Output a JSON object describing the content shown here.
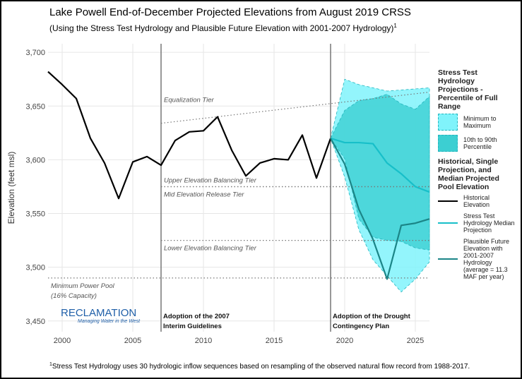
{
  "chart_data": {
    "type": "line",
    "title": "Lake Powell End-of-December Projected Elevations from August 2019 CRSS",
    "subtitle": "(Using the Stress Test Hydrology and Plausible Future Elevation with 2001-2007 Hydrology)",
    "subtitle_marker": "1",
    "ylabel": "Elevation (feet msl)",
    "xlim": [
      1999,
      2026
    ],
    "ylim": [
      3440,
      3708
    ],
    "xticks": [
      2000,
      2005,
      2010,
      2015,
      2020,
      2025
    ],
    "yticks": [
      {
        "value": 3450,
        "label": "3,450"
      },
      {
        "value": 3500,
        "label": "3,500"
      },
      {
        "value": 3550,
        "label": "3,550"
      },
      {
        "value": 3600,
        "label": "3,600"
      },
      {
        "value": 3650,
        "label": "3,650"
      },
      {
        "value": 3700,
        "label": "3,700"
      }
    ],
    "grid": true,
    "x": [
      1999,
      2000,
      2001,
      2002,
      2003,
      2004,
      2005,
      2006,
      2007,
      2008,
      2009,
      2010,
      2011,
      2012,
      2013,
      2014,
      2015,
      2016,
      2017,
      2018,
      2019,
      2020,
      2021,
      2022,
      2023,
      2024,
      2025,
      2026
    ],
    "bands": [
      {
        "name": "Minimum to Maximum",
        "color": "#80f3fb",
        "upper": [
          null,
          null,
          null,
          null,
          null,
          null,
          null,
          null,
          null,
          null,
          null,
          null,
          null,
          null,
          null,
          null,
          null,
          null,
          null,
          null,
          3620,
          3675,
          3670,
          3667,
          3664,
          3665,
          3666,
          3667
        ],
        "lower": [
          null,
          null,
          null,
          null,
          null,
          null,
          null,
          null,
          null,
          null,
          null,
          null,
          null,
          null,
          null,
          null,
          null,
          null,
          null,
          null,
          3620,
          3584,
          3535,
          3507,
          3492,
          3477,
          3489,
          3505
        ]
      },
      {
        "name": "10th to 90th Percentile",
        "color": "#3ccfd2",
        "upper": [
          null,
          null,
          null,
          null,
          null,
          null,
          null,
          null,
          null,
          null,
          null,
          null,
          null,
          null,
          null,
          null,
          null,
          null,
          null,
          null,
          3620,
          3646,
          3655,
          3657,
          3661,
          3652,
          3647,
          3659
        ],
        "lower": [
          null,
          null,
          null,
          null,
          null,
          null,
          null,
          null,
          null,
          null,
          null,
          null,
          null,
          null,
          null,
          null,
          null,
          null,
          null,
          null,
          3620,
          3601,
          3545,
          3528,
          3525,
          3524,
          3518,
          3516
        ]
      }
    ],
    "series": [
      {
        "name": "Historical Elevation",
        "color": "#000000",
        "values": [
          3682,
          3670,
          3657,
          3620,
          3597,
          3564,
          3598,
          3603,
          3595,
          3618,
          3626,
          3627,
          3640,
          3609,
          3585,
          3597,
          3601,
          3600,
          3623,
          3583,
          3620,
          null,
          null,
          null,
          null,
          null,
          null,
          null
        ]
      },
      {
        "name": "Stress Test Hydrology Median Projection",
        "color": "#17bfc9",
        "values": [
          null,
          null,
          null,
          null,
          null,
          null,
          null,
          null,
          null,
          null,
          null,
          null,
          null,
          null,
          null,
          null,
          null,
          null,
          null,
          null,
          3620,
          3616,
          3616,
          3615,
          3597,
          3587,
          3575,
          3570
        ]
      },
      {
        "name": "Plausible Future Elevation with 2001-2007 Hydrology (average = 11.3 MAF per year)",
        "color": "#1b8587",
        "values": [
          null,
          null,
          null,
          null,
          null,
          null,
          null,
          null,
          null,
          null,
          null,
          null,
          null,
          null,
          null,
          null,
          null,
          null,
          null,
          null,
          3620,
          3596,
          3554,
          3526,
          3489,
          3539,
          3541,
          3545
        ]
      }
    ],
    "reference_lines": [
      {
        "label": [
          "Equalization Tier"
        ],
        "x": [
          2007,
          2026
        ],
        "values": [
          3634,
          3663
        ],
        "label_side": "above"
      },
      {
        "label": [
          "Upper Elevation Balancing Tier"
        ],
        "x": [
          2007,
          2026
        ],
        "values": [
          3575,
          3575
        ],
        "label_side": "above"
      },
      {
        "label": [
          "Mid Elevation Release Tier"
        ],
        "x": [
          2007,
          2026
        ],
        "values": [
          3575,
          3575
        ],
        "label_side": "below"
      },
      {
        "label": [
          "Lower Elevation Balancing Tier"
        ],
        "x": [
          2007,
          2026
        ],
        "values": [
          3525,
          3525
        ],
        "label_side": "below"
      },
      {
        "label": [
          "Minimum Power Pool",
          "(16% Capacity)"
        ],
        "x": [
          1999,
          2026
        ],
        "values": [
          3490,
          3490
        ],
        "label_side": "below"
      }
    ],
    "annotations": [
      {
        "x": 2007,
        "label": [
          "Adoption of the 2007",
          "Interim Guidelines"
        ]
      },
      {
        "x": 2019,
        "label": [
          "Adoption of the Drought",
          "Contingency Plan"
        ]
      }
    ],
    "legend": {
      "band_title": "Stress Test Hydrology Projections - Percentile of Full Range",
      "line_title": "Historical, Single Projection, and Median Projected Pool Elevation"
    },
    "logo": {
      "name": "RECLAMATION",
      "tagline": "Managing Water in the West"
    },
    "footnote_marker": "1",
    "footnote": "Stress Test Hydrology uses 30 hydrologic inflow sequences based on resampling of the observed natural flow record from 1988-2017."
  }
}
